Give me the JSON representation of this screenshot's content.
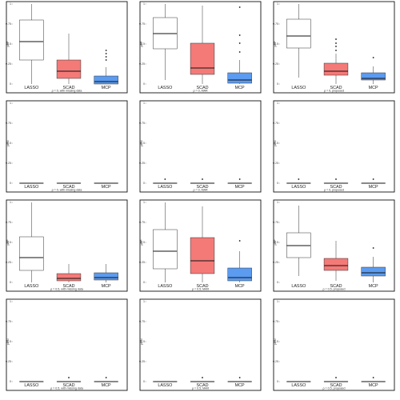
{
  "chart_data": {
    "type": "boxplot-grid",
    "rows": 4,
    "cols": 3,
    "categories": [
      "LASSO",
      "SCAD",
      "MCP"
    ],
    "colors": {
      "LASSO": "#ffffff",
      "SCAD": "#f47a78",
      "MCP": "#5b9bf0"
    },
    "panels": [
      {
        "ylabel": "pFP",
        "caption": "ρ = 0, with missing data",
        "ylim": [
          0,
          1
        ],
        "yticks": [
          "0",
          "0.25",
          "0.5",
          "0.75",
          "1"
        ],
        "boxes": [
          {
            "category": "LASSO",
            "min": 0.0,
            "q1": 0.3,
            "median": 0.53,
            "q3": 0.8,
            "max": 1.0,
            "outliers": []
          },
          {
            "category": "SCAD",
            "min": 0.0,
            "q1": 0.07,
            "median": 0.16,
            "q3": 0.3,
            "max": 0.63,
            "outliers": []
          },
          {
            "category": "MCP",
            "min": 0.0,
            "q1": 0.0,
            "median": 0.03,
            "q3": 0.1,
            "max": 0.21,
            "outliers": [
              0.3,
              0.34,
              0.38,
              0.42
            ]
          }
        ]
      },
      {
        "ylabel": "pFP",
        "caption": "ρ = 0, MAR",
        "ylim": [
          0,
          1
        ],
        "yticks": [
          "0",
          "0.25",
          "0.5",
          "0.75",
          "1"
        ],
        "boxes": [
          {
            "category": "LASSO",
            "min": 0.05,
            "q1": 0.44,
            "median": 0.63,
            "q3": 0.83,
            "max": 1.0,
            "outliers": []
          },
          {
            "category": "SCAD",
            "min": 0.0,
            "q1": 0.12,
            "median": 0.2,
            "q3": 0.51,
            "max": 0.98,
            "outliers": []
          },
          {
            "category": "MCP",
            "min": 0.0,
            "q1": 0.01,
            "median": 0.05,
            "q3": 0.14,
            "max": 0.3,
            "outliers": [
              0.4,
              0.51,
              0.61,
              0.96
            ]
          }
        ]
      },
      {
        "ylabel": "pFP",
        "caption": "ρ = 0, proposed",
        "ylim": [
          0,
          1
        ],
        "yticks": [
          "0",
          "0.25",
          "0.5",
          "0.75",
          "1"
        ],
        "boxes": [
          {
            "category": "LASSO",
            "min": 0.08,
            "q1": 0.45,
            "median": 0.6,
            "q3": 0.81,
            "max": 1.0,
            "outliers": []
          },
          {
            "category": "SCAD",
            "min": 0.0,
            "q1": 0.11,
            "median": 0.16,
            "q3": 0.26,
            "max": 0.38,
            "outliers": [
              0.42,
              0.47,
              0.51,
              0.56
            ]
          },
          {
            "category": "MCP",
            "min": 0.0,
            "q1": 0.05,
            "median": 0.07,
            "q3": 0.14,
            "max": 0.22,
            "outliers": [
              0.33
            ]
          }
        ]
      },
      {
        "ylabel": "pFN",
        "caption": "ρ = 0, with missing data",
        "ylim": [
          0,
          1
        ],
        "yticks": [
          "0",
          "0.25",
          "0.5",
          "0.75",
          "1"
        ],
        "boxes": [
          {
            "category": "LASSO",
            "min": 0,
            "q1": 0,
            "median": 0,
            "q3": 0,
            "max": 0,
            "outliers": []
          },
          {
            "category": "SCAD",
            "min": 0,
            "q1": 0,
            "median": 0,
            "q3": 0,
            "max": 0,
            "outliers": []
          },
          {
            "category": "MCP",
            "min": 0,
            "q1": 0,
            "median": 0,
            "q3": 0,
            "max": 0,
            "outliers": []
          }
        ]
      },
      {
        "ylabel": "pFN",
        "caption": "ρ = 0, MAR",
        "ylim": [
          0,
          1
        ],
        "yticks": [
          "0",
          "0.25",
          "0.5",
          "0.75",
          "1"
        ],
        "boxes": [
          {
            "category": "LASSO",
            "min": 0,
            "q1": 0,
            "median": 0,
            "q3": 0,
            "max": 0,
            "outliers": [
              0.05
            ]
          },
          {
            "category": "SCAD",
            "min": 0,
            "q1": 0,
            "median": 0,
            "q3": 0,
            "max": 0,
            "outliers": [
              0.05
            ]
          },
          {
            "category": "MCP",
            "min": 0,
            "q1": 0,
            "median": 0,
            "q3": 0,
            "max": 0,
            "outliers": [
              0.05
            ]
          }
        ]
      },
      {
        "ylabel": "pFN",
        "caption": "ρ = 0, proposed",
        "ylim": [
          0,
          1
        ],
        "yticks": [
          "0",
          "0.25",
          "0.5",
          "0.75",
          "1"
        ],
        "boxes": [
          {
            "category": "LASSO",
            "min": 0,
            "q1": 0,
            "median": 0,
            "q3": 0,
            "max": 0,
            "outliers": [
              0.05
            ]
          },
          {
            "category": "SCAD",
            "min": 0,
            "q1": 0,
            "median": 0,
            "q3": 0,
            "max": 0,
            "outliers": [
              0.05
            ]
          },
          {
            "category": "MCP",
            "min": 0,
            "q1": 0,
            "median": 0,
            "q3": 0,
            "max": 0,
            "outliers": [
              0.05
            ]
          }
        ]
      },
      {
        "ylabel": "pFP",
        "caption": "ρ = 0.5, with missing data",
        "ylim": [
          0,
          1
        ],
        "yticks": [
          "0",
          "0.25",
          "0.5",
          "0.75",
          "1"
        ],
        "boxes": [
          {
            "category": "LASSO",
            "min": 0.0,
            "q1": 0.15,
            "median": 0.31,
            "q3": 0.57,
            "max": 1.0,
            "outliers": []
          },
          {
            "category": "SCAD",
            "min": 0.0,
            "q1": 0.02,
            "median": 0.05,
            "q3": 0.11,
            "max": 0.23,
            "outliers": []
          },
          {
            "category": "MCP",
            "min": 0.0,
            "q1": 0.03,
            "median": 0.06,
            "q3": 0.12,
            "max": 0.23,
            "outliers": []
          }
        ]
      },
      {
        "ylabel": "pFP",
        "caption": "ρ = 0.5, MAR",
        "ylim": [
          0,
          1
        ],
        "yticks": [
          "0",
          "0.25",
          "0.5",
          "0.75",
          "1"
        ],
        "boxes": [
          {
            "category": "LASSO",
            "min": 0.0,
            "q1": 0.17,
            "median": 0.39,
            "q3": 0.66,
            "max": 1.0,
            "outliers": []
          },
          {
            "category": "SCAD",
            "min": 0.0,
            "q1": 0.11,
            "median": 0.27,
            "q3": 0.56,
            "max": 0.95,
            "outliers": []
          },
          {
            "category": "MCP",
            "min": 0.0,
            "q1": 0.02,
            "median": 0.06,
            "q3": 0.18,
            "max": 0.39,
            "outliers": [
              0.52
            ]
          }
        ]
      },
      {
        "ylabel": "pFP",
        "caption": "ρ = 0.5, proposed",
        "ylim": [
          0,
          1
        ],
        "yticks": [
          "0",
          "0.25",
          "0.5",
          "0.75",
          "1"
        ],
        "boxes": [
          {
            "category": "LASSO",
            "min": 0.08,
            "q1": 0.31,
            "median": 0.46,
            "q3": 0.62,
            "max": 0.96,
            "outliers": []
          },
          {
            "category": "SCAD",
            "min": 0.02,
            "q1": 0.15,
            "median": 0.21,
            "q3": 0.3,
            "max": 0.52,
            "outliers": []
          },
          {
            "category": "MCP",
            "min": 0.0,
            "q1": 0.08,
            "median": 0.12,
            "q3": 0.19,
            "max": 0.32,
            "outliers": [
              0.43
            ]
          }
        ]
      },
      {
        "ylabel": "pFN",
        "caption": "ρ = 0.5, with missing data",
        "ylim": [
          0,
          1
        ],
        "yticks": [
          "0",
          "0.25",
          "0.5",
          "0.75",
          "1"
        ],
        "boxes": [
          {
            "category": "LASSO",
            "min": 0,
            "q1": 0,
            "median": 0,
            "q3": 0,
            "max": 0,
            "outliers": []
          },
          {
            "category": "SCAD",
            "min": 0,
            "q1": 0,
            "median": 0,
            "q3": 0,
            "max": 0,
            "outliers": [
              0.05
            ]
          },
          {
            "category": "MCP",
            "min": 0,
            "q1": 0,
            "median": 0,
            "q3": 0,
            "max": 0,
            "outliers": [
              0.05
            ]
          }
        ]
      },
      {
        "ylabel": "pFN",
        "caption": "ρ = 0.5, MAR",
        "ylim": [
          0,
          1
        ],
        "yticks": [
          "0",
          "0.25",
          "0.5",
          "0.75",
          "1"
        ],
        "boxes": [
          {
            "category": "LASSO",
            "min": 0,
            "q1": 0,
            "median": 0,
            "q3": 0,
            "max": 0,
            "outliers": []
          },
          {
            "category": "SCAD",
            "min": 0,
            "q1": 0,
            "median": 0,
            "q3": 0,
            "max": 0,
            "outliers": [
              0.05
            ]
          },
          {
            "category": "MCP",
            "min": 0,
            "q1": 0,
            "median": 0,
            "q3": 0,
            "max": 0,
            "outliers": [
              0.05
            ]
          }
        ]
      },
      {
        "ylabel": "pFN",
        "caption": "ρ = 0.5, proposed",
        "ylim": [
          0,
          1
        ],
        "yticks": [
          "0",
          "0.25",
          "0.5",
          "0.75",
          "1"
        ],
        "boxes": [
          {
            "category": "LASSO",
            "min": 0,
            "q1": 0,
            "median": 0,
            "q3": 0,
            "max": 0,
            "outliers": []
          },
          {
            "category": "SCAD",
            "min": 0,
            "q1": 0,
            "median": 0,
            "q3": 0,
            "max": 0,
            "outliers": [
              0.05
            ]
          },
          {
            "category": "MCP",
            "min": 0,
            "q1": 0,
            "median": 0,
            "q3": 0,
            "max": 0,
            "outliers": [
              0.05
            ]
          }
        ]
      }
    ]
  }
}
